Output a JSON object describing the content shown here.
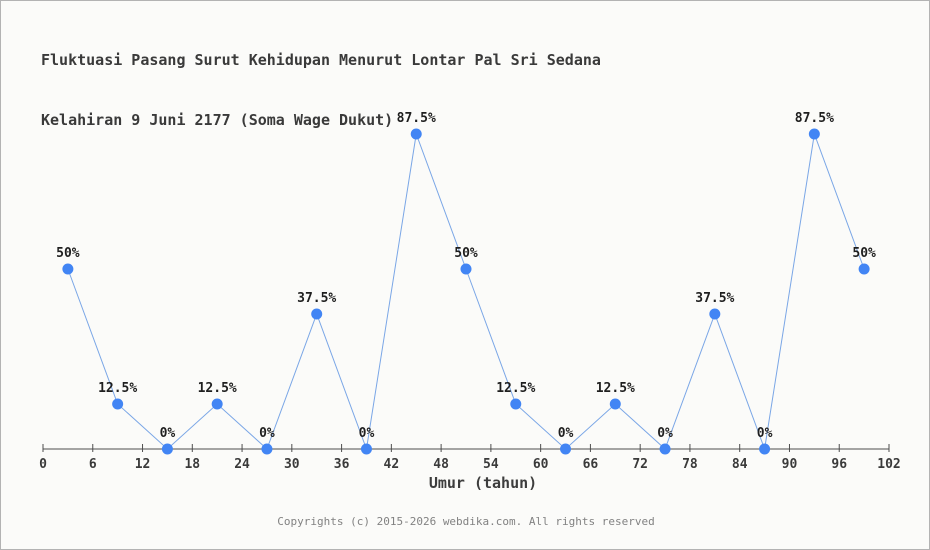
{
  "title": {
    "line1": "Fluktuasi Pasang Surut Kehidupan Menurut Lontar Pal Sri Sedana",
    "line2": "Kelahiran 9 Juni 2177 (Soma Wage Dukut)"
  },
  "footer": {
    "copyright": "Copyrights (c) 2015-2026 webdika.com. All rights reserved"
  },
  "chart_data": {
    "type": "line",
    "title": "Fluktuasi Pasang Surut Kehidupan Menurut Lontar Pal Sri Sedana Kelahiran 9 Juni 2177 (Soma Wage Dukut)",
    "xlabel": "Umur (tahun)",
    "ylabel": "",
    "x": [
      3,
      9,
      15,
      21,
      27,
      33,
      39,
      45,
      51,
      57,
      63,
      69,
      75,
      81,
      87,
      93,
      99
    ],
    "values": [
      50,
      12.5,
      0,
      12.5,
      0,
      37.5,
      0,
      87.5,
      50,
      12.5,
      0,
      12.5,
      0,
      37.5,
      0,
      87.5,
      50
    ],
    "point_labels": [
      "50%",
      "12.5%",
      "0%",
      "12.5%",
      "0%",
      "37.5%",
      "0%",
      "87.5%",
      "50%",
      "12.5%",
      "0%",
      "12.5%",
      "0%",
      "37.5%",
      "0%",
      "87.5%",
      "50%"
    ],
    "x_ticks": [
      0,
      6,
      12,
      18,
      24,
      30,
      36,
      42,
      48,
      54,
      60,
      66,
      72,
      78,
      84,
      90,
      96,
      102
    ],
    "xlim": [
      0,
      102
    ],
    "ylim": [
      0,
      100
    ],
    "grid": false,
    "legend": false,
    "colors": {
      "line": "#7aa6e6",
      "marker": "#4285f4",
      "point_label": "#1f1f1f",
      "axis": "#4d4d4d",
      "tick_label": "#3a3a3a"
    }
  }
}
